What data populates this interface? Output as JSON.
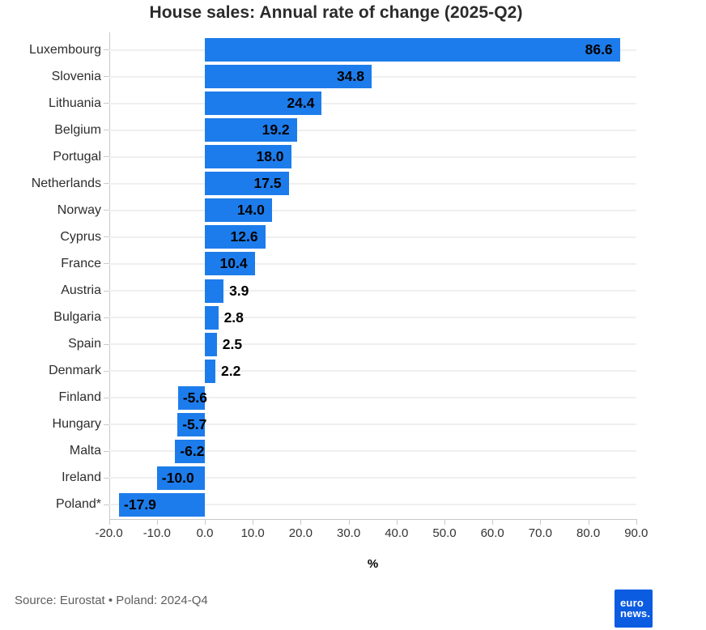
{
  "title": "House sales: Annual rate of change (2025-Q2)",
  "chart_data": {
    "type": "bar",
    "orientation": "horizontal",
    "title": "House sales: Annual rate of change (2025-Q2)",
    "categories": [
      "Luxembourg",
      "Slovenia",
      "Lithuania",
      "Belgium",
      "Portugal",
      "Netherlands",
      "Norway",
      "Cyprus",
      "France",
      "Austria",
      "Bulgaria",
      "Spain",
      "Denmark",
      "Finland",
      "Hungary",
      "Malta",
      "Ireland",
      "Poland*"
    ],
    "values": [
      86.6,
      34.8,
      24.4,
      19.2,
      18.0,
      17.5,
      14.0,
      12.6,
      10.4,
      3.9,
      2.8,
      2.5,
      2.2,
      -5.6,
      -5.7,
      -6.2,
      -10.0,
      -17.9
    ],
    "xlabel": "%",
    "ylabel": "",
    "xlim": [
      -20,
      90
    ],
    "x_ticks": [
      -20,
      -10,
      0,
      10,
      20,
      30,
      40,
      50,
      60,
      70,
      80,
      90
    ],
    "x_tick_labels": [
      "-20.0",
      "-10.0",
      "0.0",
      "10.0",
      "20.0",
      "30.0",
      "40.0",
      "50.0",
      "60.0",
      "70.0",
      "80.0",
      "90.0"
    ],
    "grid": true,
    "legend": false,
    "value_labels": true
  },
  "colors": {
    "bar": "#1d7ceb",
    "grid": "#efefef",
    "axis": "#c9c9c9",
    "title": "#2b2b2b",
    "category_label": "#2d2d2d",
    "tick_label": "#333333",
    "value_label": "#000000",
    "source": "#5e5e5e",
    "logo_bg": "#0c5ce2",
    "logo_text": "#ffffff"
  },
  "footer": {
    "source": "Source: Eurostat • Poland: 2024-Q4",
    "logo": {
      "line1": "euro",
      "line2": "news."
    }
  }
}
